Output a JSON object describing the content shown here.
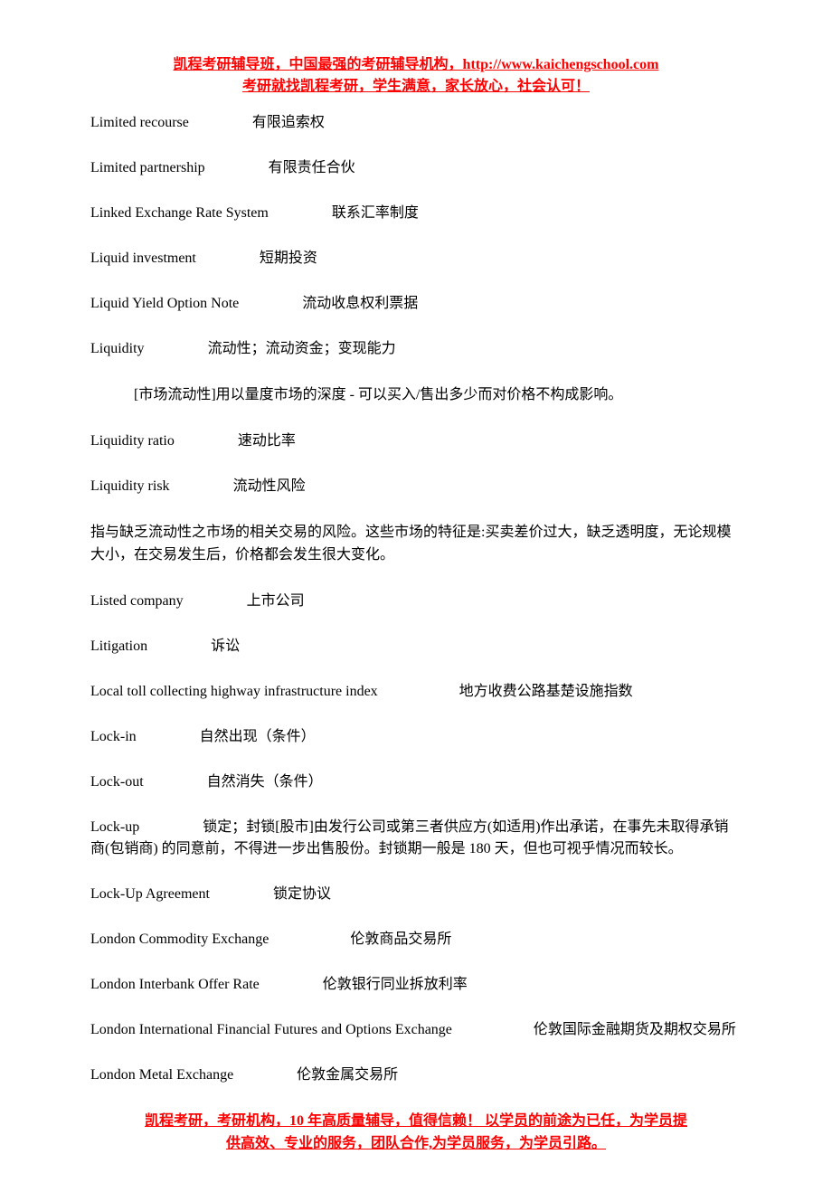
{
  "header": {
    "line1": "凯程考研辅导班，中国最强的考研辅导机构，http://www.kaichengschool.com",
    "line2": "考研就找凯程考研，学生满意，家长放心，社会认可！"
  },
  "entries": [
    {
      "term": "Limited recourse",
      "gap": "gap-med",
      "defn": "有限追索权"
    },
    {
      "term": "Limited partnership",
      "gap": "gap-med",
      "defn": "有限责任合伙"
    },
    {
      "term": "Linked Exchange Rate System",
      "gap": "gap-med",
      "defn": "联系汇率制度"
    },
    {
      "term": "Liquid investment",
      "gap": "gap-med",
      "defn": "短期投资"
    },
    {
      "term": "Liquid Yield Option Note",
      "gap": "gap-med",
      "defn": "流动收息权利票据"
    },
    {
      "term": "Liquidity",
      "gap": "gap-med",
      "defn": "流动性；流动资金；变现能力"
    },
    {
      "note": "[市场流动性]用以量度市场的深度 - 可以买入/售出多少而对价格不构成影响。",
      "indent": true
    },
    {
      "term": "Liquidity ratio",
      "gap": "gap-med",
      "defn": "速动比率"
    },
    {
      "term": "Liquidity risk",
      "gap": "gap-med",
      "defn": "流动性风险"
    },
    {
      "note": "指与缺乏流动性之市场的相关交易的风险。这些市场的特征是:买卖差价过大，缺乏透明度，无论规模大小，在交易发生后，价格都会发生很大变化。"
    },
    {
      "term": "Listed company",
      "gap": "gap-med",
      "defn": "上市公司"
    },
    {
      "term": "Litigation",
      "gap": "gap-med",
      "defn": "诉讼"
    },
    {
      "term": "Local toll collecting highway infrastructure index",
      "gap": "gap-large",
      "defn": "地方收费公路基楚设施指数"
    },
    {
      "term": "Lock-in",
      "gap": "gap-med",
      "defn": "自然出现（条件）"
    },
    {
      "term": "Lock-out",
      "gap": "gap-med",
      "defn": "自然消失（条件）"
    },
    {
      "term": "Lock-up",
      "gap": "gap-med",
      "defn": "锁定；封锁[股市]由发行公司或第三者供应方(如适用)作出承诺，在事先未取得承销商(包销商) 的同意前，不得进一步出售股份。封锁期一般是 180 天，但也可视乎情况而较长。",
      "wrap": true
    },
    {
      "term": "Lock-Up Agreement",
      "gap": "gap-med",
      "defn": "锁定协议"
    },
    {
      "term": "London Commodity Exchange",
      "gap": "gap-large",
      "defn": "伦敦商品交易所"
    },
    {
      "term": "London Interbank Offer Rate",
      "gap": "gap-med",
      "defn": "伦敦银行同业拆放利率"
    },
    {
      "term": "London International Financial Futures and Options Exchange",
      "gap": "gap-large",
      "defn": "伦敦国际金融期货及期权交易所",
      "wrap": true
    },
    {
      "term": "London Metal Exchange",
      "gap": "gap-med",
      "defn": "伦敦金属交易所"
    }
  ],
  "footer": {
    "line1": "凯程考研，考研机构，10 年高质量辅导，值得信赖！ 以学员的前途为已任，为学员提",
    "line2": "供高效、专业的服务，团队合作,为学员服务，为学员引路。"
  },
  "colors": {
    "accent": "#ff0000",
    "text": "#000000",
    "background": "#ffffff"
  },
  "typography": {
    "body_fontsize_pt": 12,
    "header_fontsize_pt": 12,
    "font_family": "Times New Roman / SimSun"
  }
}
